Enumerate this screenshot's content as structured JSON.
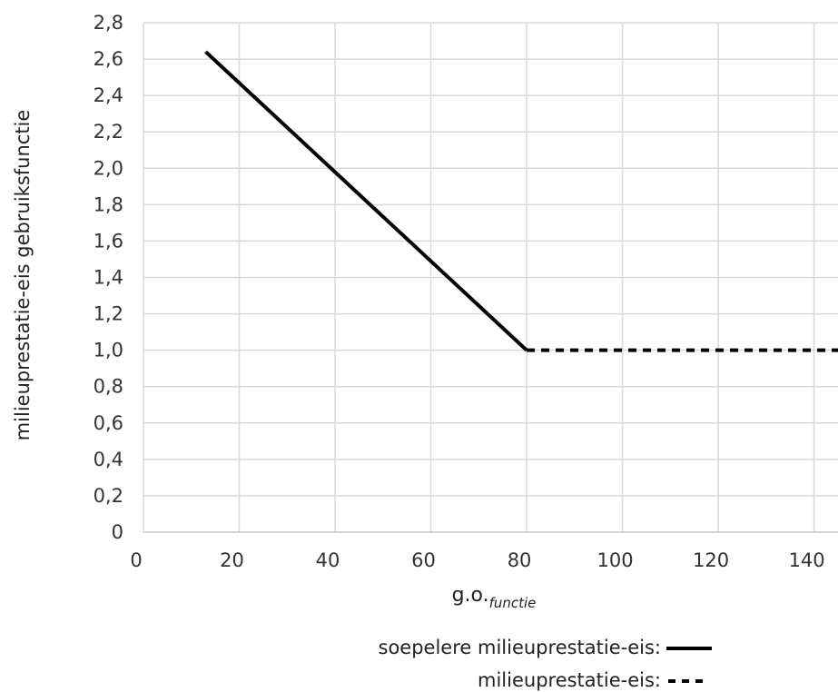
{
  "chart_data": {
    "type": "line",
    "xlabel": {
      "main": "g.o.",
      "sub": "functie"
    },
    "ylabel": "milieuprestatie-eis gebruiksfunctie",
    "xlim": [
      0,
      145
    ],
    "ylim": [
      0,
      2.8
    ],
    "x_ticks": [
      "0",
      "20",
      "40",
      "60",
      "80",
      "100",
      "120",
      "140"
    ],
    "y_ticks": [
      "0",
      "0,2",
      "0,4",
      "0,6",
      "0,8",
      "1,0",
      "1,2",
      "1,4",
      "1,6",
      "1,8",
      "2,0",
      "2,2",
      "2,4",
      "2,6",
      "2,8"
    ],
    "grid": true,
    "legend_position": "bottom-right",
    "series": [
      {
        "name": "soepelere milieuprestatie-eis:",
        "style": "solid",
        "color": "#000000",
        "points": [
          [
            13,
            2.64
          ],
          [
            80,
            1.0
          ]
        ]
      },
      {
        "name": "milieuprestatie-eis:",
        "style": "dashed",
        "color": "#000000",
        "points": [
          [
            80,
            1.0
          ],
          [
            145,
            1.0
          ]
        ]
      }
    ]
  }
}
